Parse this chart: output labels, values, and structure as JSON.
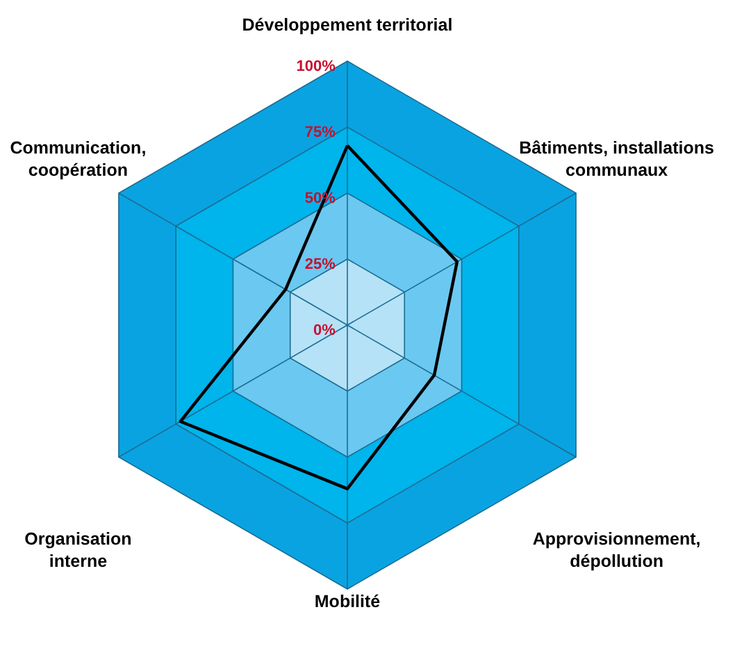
{
  "chart_data": {
    "type": "radar",
    "categories": [
      "Développement territorial",
      "Bâtiments, installations\ncommunaux",
      "Approvisionnement,\ndépollution",
      "Mobilité",
      "Organisation\ninterne",
      "Communication,\ncoopération"
    ],
    "series": [
      {
        "color": "#000000",
        "values": [
          68,
          48,
          38,
          62,
          73,
          27
        ]
      }
    ],
    "ylim": [
      0,
      100
    ],
    "yticks": [
      {
        "value": 0,
        "label": "0%"
      },
      {
        "value": 25,
        "label": "25%"
      },
      {
        "value": 50,
        "label": "50%"
      },
      {
        "value": 75,
        "label": "75%"
      },
      {
        "value": 100,
        "label": "100%"
      }
    ],
    "grid": true,
    "marker": "none"
  }
}
